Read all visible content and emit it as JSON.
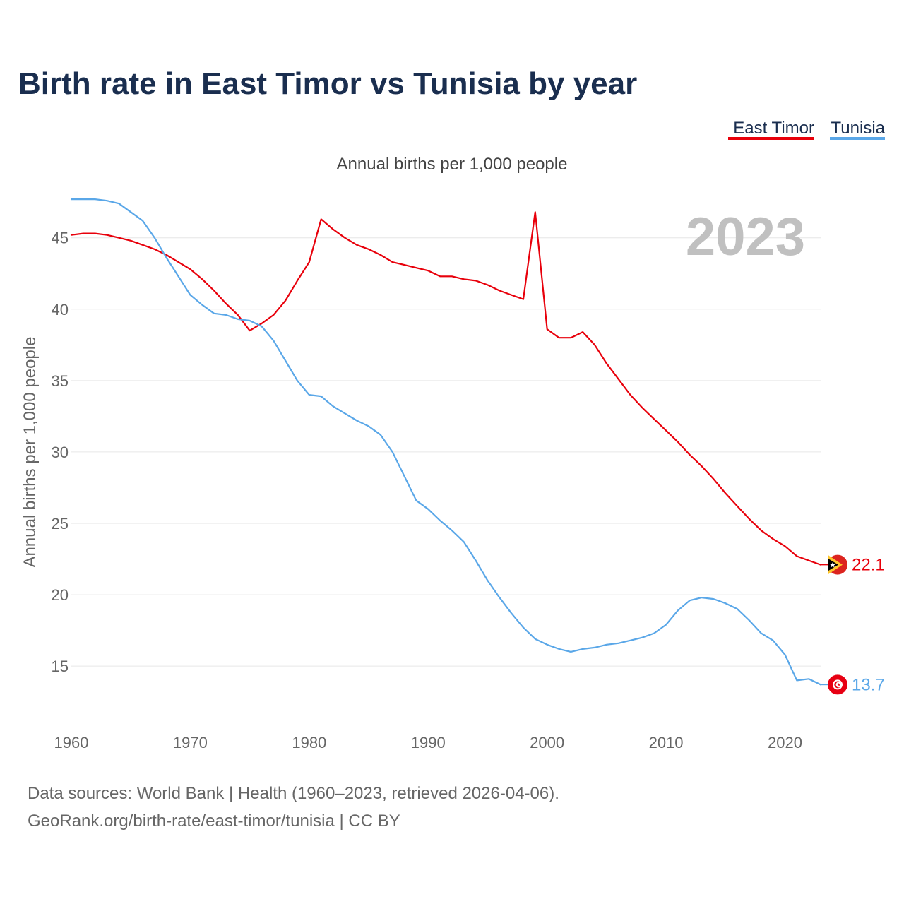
{
  "chart_data": {
    "type": "line",
    "title": "Birth rate in East Timor vs Tunisia by year",
    "subtitle": "Annual births per 1,000 people",
    "ylabel": "Annual births per 1,000 people",
    "xlabel": "",
    "current_year_label": "2023",
    "xlim": [
      1960,
      2023
    ],
    "ylim": [
      11,
      48.3
    ],
    "x_ticks": [
      1960,
      1970,
      1980,
      1990,
      2000,
      2010,
      2020
    ],
    "y_ticks": [
      15,
      20,
      25,
      30,
      35,
      40,
      45
    ],
    "grid": true,
    "legend_position": "top-right",
    "x": [
      1960,
      1961,
      1962,
      1963,
      1964,
      1965,
      1966,
      1967,
      1968,
      1969,
      1970,
      1971,
      1972,
      1973,
      1974,
      1975,
      1976,
      1977,
      1978,
      1979,
      1980,
      1981,
      1982,
      1983,
      1984,
      1985,
      1986,
      1987,
      1988,
      1989,
      1990,
      1991,
      1992,
      1993,
      1994,
      1995,
      1996,
      1997,
      1998,
      1999,
      2000,
      2001,
      2002,
      2003,
      2004,
      2005,
      2006,
      2007,
      2008,
      2009,
      2010,
      2011,
      2012,
      2013,
      2014,
      2015,
      2016,
      2017,
      2018,
      2019,
      2020,
      2021,
      2022,
      2023
    ],
    "series": [
      {
        "name": "East Timor",
        "color": "#e8000b",
        "end_label": "22.1",
        "values": [
          45.2,
          45.3,
          45.3,
          45.2,
          45.0,
          44.8,
          44.5,
          44.2,
          43.8,
          43.3,
          42.8,
          42.1,
          41.3,
          40.4,
          39.6,
          38.5,
          39.0,
          39.6,
          40.6,
          42.0,
          43.3,
          46.3,
          45.6,
          45.0,
          44.5,
          44.2,
          43.8,
          43.3,
          43.1,
          42.9,
          42.7,
          42.3,
          42.3,
          42.1,
          42.0,
          41.7,
          41.3,
          41.0,
          40.7,
          46.8,
          38.6,
          38.0,
          38.0,
          38.4,
          37.5,
          36.2,
          35.1,
          34.0,
          33.1,
          32.3,
          31.5,
          30.7,
          29.8,
          29.0,
          28.1,
          27.1,
          26.2,
          25.3,
          24.5,
          23.9,
          23.4,
          22.7,
          22.4,
          22.1
        ]
      },
      {
        "name": "Tunisia",
        "color": "#5aa7e8",
        "end_label": "13.7",
        "values": [
          47.7,
          47.7,
          47.7,
          47.6,
          47.4,
          46.8,
          46.2,
          45.0,
          43.6,
          42.3,
          41.0,
          40.3,
          39.7,
          39.6,
          39.3,
          39.2,
          38.8,
          37.8,
          36.4,
          35.0,
          34.0,
          33.9,
          33.2,
          32.7,
          32.2,
          31.8,
          31.2,
          30.0,
          28.3,
          26.6,
          26.0,
          25.2,
          24.5,
          23.7,
          22.4,
          21.0,
          19.8,
          18.7,
          17.7,
          16.9,
          16.5,
          16.2,
          16.0,
          16.2,
          16.3,
          16.5,
          16.6,
          16.8,
          17.0,
          17.3,
          17.9,
          18.9,
          19.6,
          19.8,
          19.7,
          19.4,
          19.0,
          18.2,
          17.3,
          16.8,
          15.8,
          14.0,
          14.1,
          13.7
        ]
      }
    ]
  },
  "source": {
    "line1": "Data sources: World Bank | Health (1960–2023, retrieved 2026-04-06).",
    "line2": "GeoRank.org/birth-rate/east-timor/tunisia | CC BY"
  },
  "icons": {
    "east_timor_flag": "east-timor-flag-icon",
    "tunisia_flag": "tunisia-flag-icon"
  }
}
